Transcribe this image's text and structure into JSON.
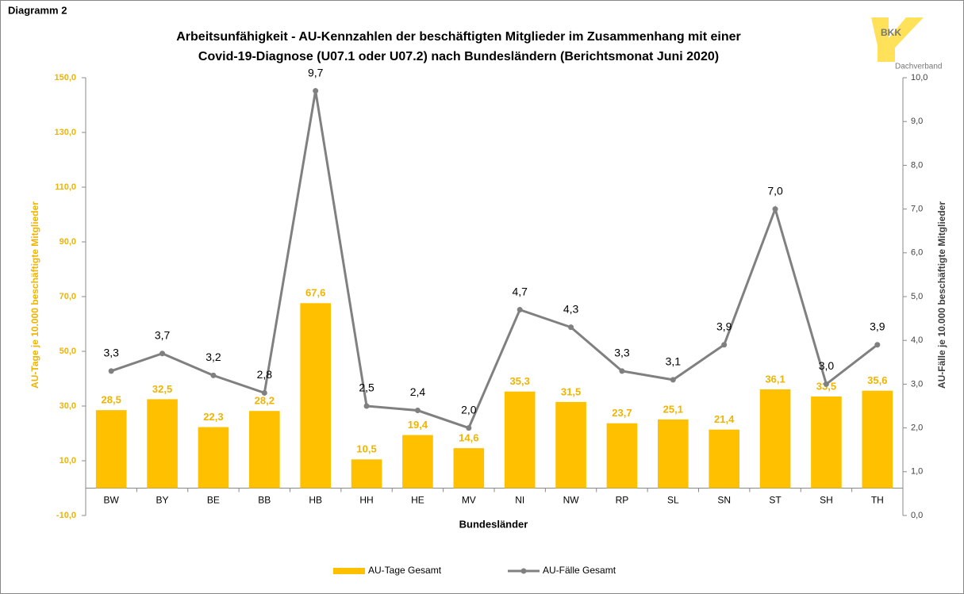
{
  "header": {
    "label": "Diagramm 2"
  },
  "logo": {
    "text": "BKK",
    "subtext": "Dachverband"
  },
  "chart_data": {
    "type": "bar",
    "title": [
      "Arbeitsunfähigkeit - AU-Kennzahlen der beschäftigten Mitglieder im Zusammenhang  mit einer",
      "Covid-19-Diagnose (U07.1 oder U07.2) nach Bundesländern (Berichtsmonat Juni 2020)"
    ],
    "x_label": "Bundesländer",
    "y_label": "AU-Tage je 10.000 beschäftigte Mitglieder",
    "y2_label": "AU-Fälle je 10.000 beschäftigte Mitglieder",
    "categories": [
      "BW",
      "BY",
      "BE",
      "BB",
      "HB",
      "HH",
      "HE",
      "MV",
      "NI",
      "NW",
      "RP",
      "SL",
      "SN",
      "ST",
      "SH",
      "TH"
    ],
    "series": [
      {
        "name": "AU-Tage Gesamt",
        "type": "bar",
        "color": "#ffc000",
        "values": [
          28.5,
          32.5,
          22.3,
          28.2,
          67.6,
          10.5,
          19.4,
          14.6,
          35.3,
          31.5,
          23.7,
          25.1,
          21.4,
          36.1,
          33.5,
          35.6
        ],
        "value_labels": [
          "28,5",
          "32,5",
          "22,3",
          "28,2",
          "67,6",
          "10,5",
          "19,4",
          "14,6",
          "35,3",
          "31,5",
          "23,7",
          "25,1",
          "21,4",
          "36,1",
          "33,5",
          "35,6"
        ]
      },
      {
        "name": "AU-Fälle Gesamt",
        "type": "line",
        "axis": "y2",
        "color": "#808080",
        "values": [
          3.3,
          3.7,
          3.2,
          2.8,
          9.7,
          2.5,
          2.4,
          2.0,
          4.7,
          4.3,
          3.3,
          3.1,
          3.9,
          7.0,
          3.0,
          3.9
        ],
        "value_labels": [
          "3,3",
          "3,7",
          "3,2",
          "2,8",
          "9,7",
          "2,5",
          "2,4",
          "2,0",
          "4,7",
          "4,3",
          "3,3",
          "3,1",
          "3,9",
          "7,0",
          "3,0",
          "3,9"
        ]
      }
    ],
    "ylim": [
      -10,
      150
    ],
    "yticks": [
      {
        "value": -10,
        "label": "-10,0"
      },
      {
        "value": 10,
        "label": "10,0"
      },
      {
        "value": 30,
        "label": "30,0"
      },
      {
        "value": 50,
        "label": "50,0"
      },
      {
        "value": 70,
        "label": "70,0"
      },
      {
        "value": 90,
        "label": "90,0"
      },
      {
        "value": 110,
        "label": "110,0"
      },
      {
        "value": 130,
        "label": "130,0"
      },
      {
        "value": 150,
        "label": "150,0"
      }
    ],
    "y2lim": [
      0,
      10
    ],
    "y2ticks": [
      {
        "value": 0,
        "label": "0,0"
      },
      {
        "value": 1,
        "label": "1,0"
      },
      {
        "value": 2,
        "label": "2,0"
      },
      {
        "value": 3,
        "label": "3,0"
      },
      {
        "value": 4,
        "label": "4,0"
      },
      {
        "value": 5,
        "label": "5,0"
      },
      {
        "value": 6,
        "label": "6,0"
      },
      {
        "value": 7,
        "label": "7,0"
      },
      {
        "value": 8,
        "label": "8,0"
      },
      {
        "value": 9,
        "label": "9,0"
      },
      {
        "value": 10,
        "label": "10,0"
      }
    ],
    "legend": "bottom"
  }
}
